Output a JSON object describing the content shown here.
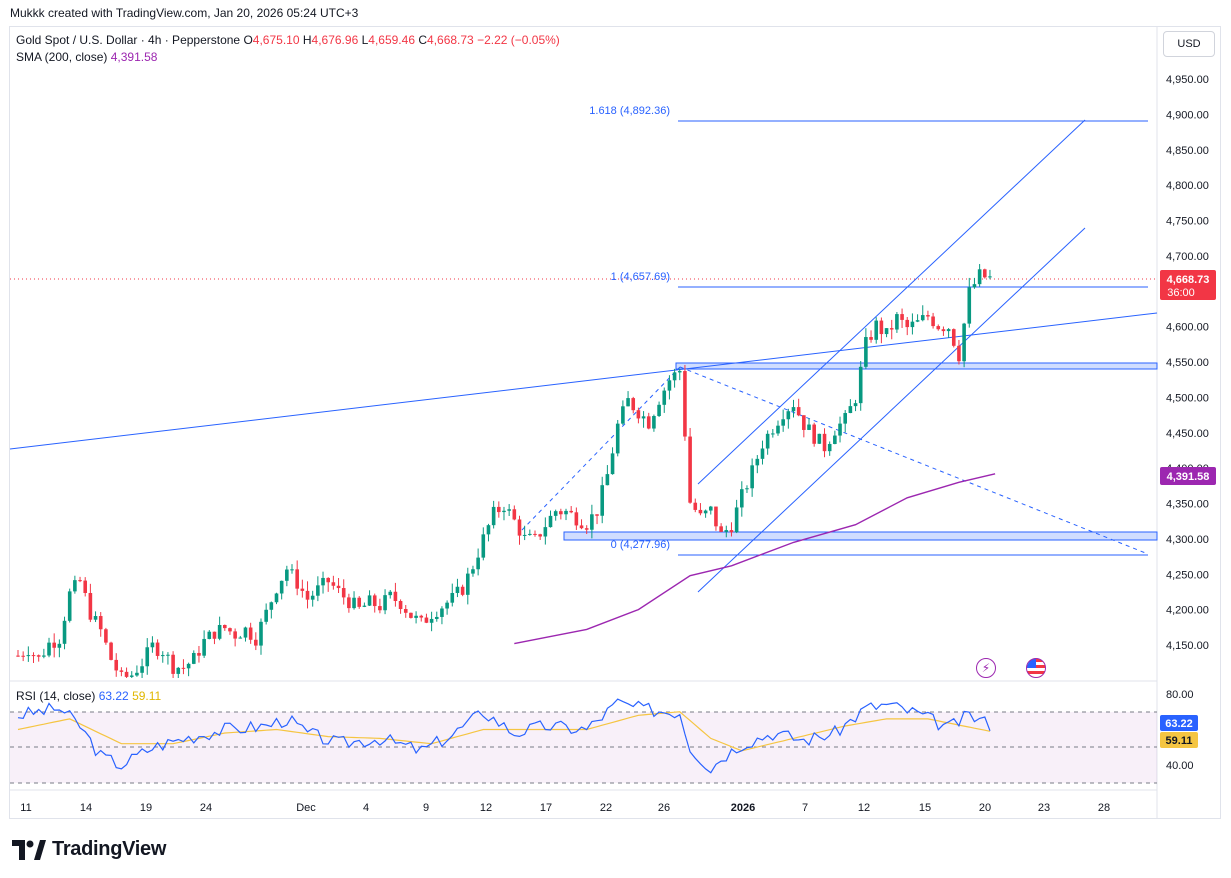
{
  "attribution": "Mukkk created with TradingView.com, Jan 20, 2026 05:24 UTC+3",
  "header": {
    "symbol": "Gold Spot / U.S. Dollar · 4h · Pepperstone",
    "o_label": "O",
    "o": "4,675.10",
    "h_label": "H",
    "h": "4,676.96",
    "l_label": "L",
    "l": "4,659.46",
    "c_label": "C",
    "c": "4,668.73",
    "change": "−2.22 (−0.05%)",
    "sma_label": "SMA (200, close)",
    "sma_value": "4,391.58"
  },
  "currency_button": "USD",
  "rsi": {
    "label": "RSI (14, close)",
    "value": "63.22",
    "signal": "59.11",
    "axis": [
      "80.00",
      "40.00"
    ]
  },
  "price_axis": [
    "4,950.00",
    "4,900.00",
    "4,850.00",
    "4,800.00",
    "4,750.00",
    "4,700.00",
    "4,650.00",
    "4,600.00",
    "4,550.00",
    "4,500.00",
    "4,450.00",
    "4,400.00",
    "4,350.00",
    "4,300.00",
    "4,250.00",
    "4,200.00",
    "4,150.00"
  ],
  "badges": {
    "last_price": "4,668.73",
    "countdown": "36:00",
    "sma": "4,391.58"
  },
  "fib_labels": {
    "f1618": "1.618 (4,892.36)",
    "f1": "1 (4,657.69)",
    "f0": "0 (4,277.96)"
  },
  "time_axis": [
    "11",
    "14",
    "19",
    "24",
    "Dec",
    "4",
    "9",
    "12",
    "17",
    "22",
    "26",
    "2026",
    "7",
    "12",
    "15",
    "20",
    "23",
    "28"
  ],
  "icons": [
    "lightning-icon",
    "us-flag-icon"
  ],
  "colors": {
    "up": "#089981",
    "down": "#f23645",
    "drawing": "#2962ff",
    "sma": "#9c27b0",
    "rsi": "#2962ff",
    "rsi_signal": "#f5c542"
  },
  "brand": "TradingView",
  "chart_data": {
    "type": "candlestick",
    "symbol": "XAUUSD",
    "timeframe": "4h",
    "ylim": [
      4120,
      4990
    ],
    "rsi_ylim": [
      30,
      85
    ],
    "x": [
      "11",
      "14",
      "19",
      "24",
      "Dec",
      "4",
      "9",
      "12",
      "17",
      "22",
      "26",
      "2026",
      "7",
      "12",
      "15",
      "20",
      "23",
      "28"
    ],
    "close_path": [
      [
        0,
        4135
      ],
      [
        2,
        4145
      ],
      [
        4,
        4130
      ],
      [
        6,
        4152
      ],
      [
        8,
        4160
      ],
      [
        10,
        4222
      ],
      [
        12,
        4240
      ],
      [
        14,
        4195
      ],
      [
        16,
        4170
      ],
      [
        18,
        4130
      ],
      [
        20,
        4102
      ],
      [
        22,
        4108
      ],
      [
        24,
        4125
      ],
      [
        26,
        4148
      ],
      [
        28,
        4142
      ],
      [
        30,
        4120
      ],
      [
        32,
        4118
      ],
      [
        34,
        4130
      ],
      [
        36,
        4155
      ],
      [
        38,
        4168
      ],
      [
        40,
        4174
      ],
      [
        42,
        4165
      ],
      [
        44,
        4172
      ],
      [
        46,
        4160
      ],
      [
        48,
        4195
      ],
      [
        50,
        4232
      ],
      [
        52,
        4258
      ],
      [
        54,
        4238
      ],
      [
        56,
        4215
      ],
      [
        58,
        4228
      ],
      [
        60,
        4240
      ],
      [
        62,
        4225
      ],
      [
        64,
        4212
      ],
      [
        66,
        4200
      ],
      [
        68,
        4210
      ],
      [
        70,
        4205
      ],
      [
        72,
        4218
      ],
      [
        74,
        4210
      ],
      [
        76,
        4192
      ],
      [
        78,
        4180
      ],
      [
        80,
        4195
      ],
      [
        82,
        4205
      ],
      [
        84,
        4215
      ],
      [
        86,
        4230
      ],
      [
        88,
        4262
      ],
      [
        90,
        4300
      ],
      [
        92,
        4335
      ],
      [
        94,
        4348
      ],
      [
        96,
        4325
      ],
      [
        98,
        4300
      ],
      [
        100,
        4298
      ],
      [
        102,
        4320
      ],
      [
        104,
        4340
      ],
      [
        106,
        4338
      ],
      [
        108,
        4330
      ],
      [
        110,
        4322
      ],
      [
        112,
        4340
      ],
      [
        114,
        4390
      ],
      [
        116,
        4460
      ],
      [
        118,
        4495
      ],
      [
        120,
        4480
      ],
      [
        122,
        4465
      ],
      [
        124,
        4498
      ],
      [
        126,
        4525
      ],
      [
        128,
        4538
      ],
      [
        129,
        4450
      ],
      [
        130,
        4352
      ],
      [
        132,
        4330
      ],
      [
        134,
        4340
      ],
      [
        136,
        4305
      ],
      [
        138,
        4320
      ],
      [
        140,
        4360
      ],
      [
        142,
        4395
      ],
      [
        144,
        4435
      ],
      [
        146,
        4458
      ],
      [
        148,
        4480
      ],
      [
        150,
        4492
      ],
      [
        152,
        4462
      ],
      [
        154,
        4445
      ],
      [
        156,
        4430
      ],
      [
        158,
        4455
      ],
      [
        160,
        4468
      ],
      [
        162,
        4500
      ],
      [
        164,
        4575
      ],
      [
        166,
        4602
      ],
      [
        168,
        4588
      ],
      [
        170,
        4612
      ],
      [
        172,
        4598
      ],
      [
        174,
        4605
      ],
      [
        176,
        4615
      ],
      [
        178,
        4602
      ],
      [
        180,
        4600
      ],
      [
        182,
        4560
      ],
      [
        184,
        4648
      ],
      [
        186,
        4672
      ],
      [
        188,
        4668
      ]
    ],
    "sma200": [
      [
        96,
        4152
      ],
      [
        110,
        4172
      ],
      [
        120,
        4200
      ],
      [
        130,
        4248
      ],
      [
        138,
        4262
      ],
      [
        150,
        4295
      ],
      [
        162,
        4320
      ],
      [
        172,
        4358
      ],
      [
        182,
        4380
      ],
      [
        189,
        4392
      ]
    ],
    "rsi_series": [
      [
        0,
        68
      ],
      [
        8,
        72
      ],
      [
        12,
        62
      ],
      [
        16,
        45
      ],
      [
        20,
        40
      ],
      [
        26,
        50
      ],
      [
        32,
        55
      ],
      [
        40,
        60
      ],
      [
        48,
        62
      ],
      [
        52,
        66
      ],
      [
        56,
        58
      ],
      [
        62,
        52
      ],
      [
        70,
        55
      ],
      [
        78,
        48
      ],
      [
        84,
        57
      ],
      [
        90,
        70
      ],
      [
        96,
        58
      ],
      [
        102,
        62
      ],
      [
        110,
        60
      ],
      [
        116,
        75
      ],
      [
        120,
        72
      ],
      [
        126,
        70
      ],
      [
        128,
        70
      ],
      [
        130,
        50
      ],
      [
        134,
        38
      ],
      [
        136,
        44
      ],
      [
        140,
        52
      ],
      [
        146,
        58
      ],
      [
        152,
        54
      ],
      [
        158,
        58
      ],
      [
        164,
        72
      ],
      [
        168,
        74
      ],
      [
        174,
        69
      ],
      [
        180,
        61
      ],
      [
        184,
        68
      ],
      [
        188,
        63
      ]
    ],
    "rsi_signal_series": [
      [
        0,
        60
      ],
      [
        10,
        66
      ],
      [
        20,
        52
      ],
      [
        30,
        52
      ],
      [
        40,
        58
      ],
      [
        50,
        60
      ],
      [
        60,
        56
      ],
      [
        70,
        55
      ],
      [
        80,
        52
      ],
      [
        90,
        60
      ],
      [
        100,
        60
      ],
      [
        110,
        60
      ],
      [
        120,
        68
      ],
      [
        128,
        70
      ],
      [
        134,
        55
      ],
      [
        140,
        48
      ],
      [
        150,
        55
      ],
      [
        160,
        62
      ],
      [
        168,
        66
      ],
      [
        176,
        66
      ],
      [
        188,
        59
      ]
    ],
    "levels": {
      "fib_1618": 4892.36,
      "fib_1": 4657.69,
      "fib_0": 4277.96,
      "last": 4668.73,
      "sma": 4391.58,
      "zone_upper": [
        4543,
        4549
      ],
      "zone_lower": [
        4300,
        4310
      ]
    },
    "grid": false,
    "legend": "top-left"
  }
}
